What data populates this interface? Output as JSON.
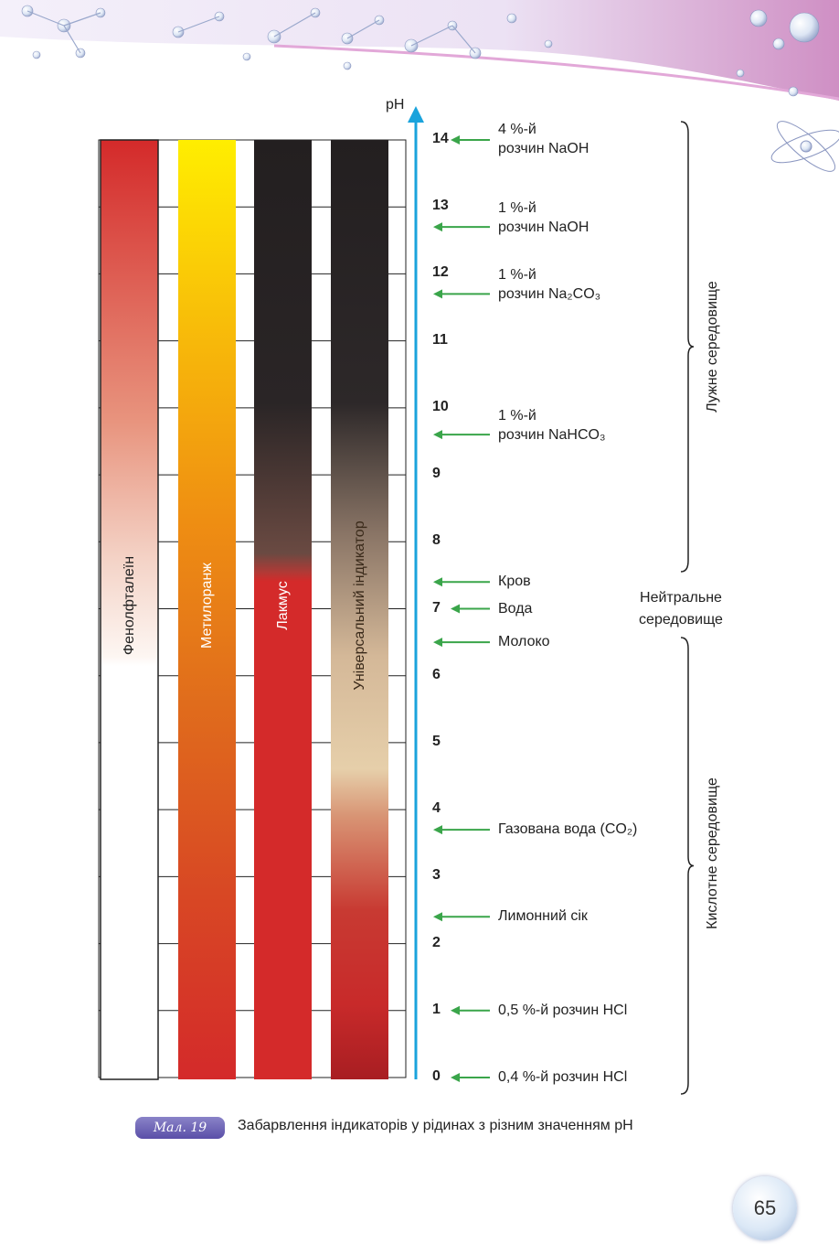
{
  "axis": {
    "label": "pH",
    "ticks": [
      "0",
      "1",
      "2",
      "3",
      "4",
      "5",
      "6",
      "7",
      "8",
      "9",
      "10",
      "11",
      "12",
      "13",
      "14"
    ],
    "color": "#1aa3dc"
  },
  "indicators": [
    {
      "name": "Фенолфталеїн",
      "stops": [
        [
          "0%",
          "#d42a2a"
        ],
        [
          "30%",
          "#e8947e"
        ],
        [
          "45%",
          "#f4d4c8"
        ],
        [
          "55%",
          "#fdf6f2"
        ],
        [
          "56%",
          "#ffffff"
        ],
        [
          "100%",
          "#ffffff"
        ]
      ]
    },
    {
      "name": "Метилоранж",
      "stops": [
        [
          "0%",
          "#ffee00"
        ],
        [
          "22%",
          "#f7b70a"
        ],
        [
          "40%",
          "#ef8f12"
        ],
        [
          "60%",
          "#e06c1c"
        ],
        [
          "80%",
          "#d84824"
        ],
        [
          "100%",
          "#d42a2a"
        ]
      ]
    },
    {
      "name": "Лакмус",
      "stops": [
        [
          "0%",
          "#231f20"
        ],
        [
          "28%",
          "#2a2526"
        ],
        [
          "44%",
          "#6a4a42"
        ],
        [
          "46%",
          "#b03a36"
        ],
        [
          "47%",
          "#d42a2a"
        ],
        [
          "100%",
          "#d42a2a"
        ]
      ]
    },
    {
      "name": "Універсальний індикатор",
      "stops": [
        [
          "0%",
          "#231f20"
        ],
        [
          "28%",
          "#2d2829"
        ],
        [
          "42%",
          "#8a7566"
        ],
        [
          "55%",
          "#d4b898"
        ],
        [
          "67%",
          "#e6cfaa"
        ],
        [
          "72%",
          "#d89474"
        ],
        [
          "82%",
          "#c83a32"
        ],
        [
          "92%",
          "#c82a2a"
        ],
        [
          "100%",
          "#a81e22"
        ]
      ]
    }
  ],
  "substances": [
    {
      "line1": "4 %-й",
      "line2": "розчин NaOH",
      "ph": 14
    },
    {
      "line1": "1 %-й",
      "line2": "розчин NaOH",
      "ph": 12.7
    },
    {
      "line1": "1 %-й",
      "line2": "розчин Na₂CO₃",
      "ph": 11.7
    },
    {
      "line1": "1 %-й",
      "line2": "розчин NaHCO₃",
      "ph": 9.6
    },
    {
      "line1": "Кров",
      "ph": 7.4
    },
    {
      "line1": "Вода",
      "ph": 7
    },
    {
      "line1": "Молоко",
      "ph": 6.5
    },
    {
      "line1": "Газована вода (CO₂)",
      "ph": 3.7
    },
    {
      "line1": "Лимонний сік",
      "ph": 2.4
    },
    {
      "line1": "0,5 %-й розчин HCl",
      "ph": 1
    },
    {
      "line1": "0,4 %-й розчин HCl",
      "ph": 0
    }
  ],
  "regions": {
    "alkaline": "Лужне середовище",
    "neutral_line1": "Нейтральне",
    "neutral_line2": "середовище",
    "acidic": "Кислотне середовище"
  },
  "caption": {
    "badge": "Мал. 19",
    "text": "Забарвлення індикаторів у рідинах з різним значенням pH"
  },
  "page_number": "65",
  "colors": {
    "arrow": "#3aa54a",
    "axis": "#1aa3dc",
    "badge": "#6a60b8"
  }
}
